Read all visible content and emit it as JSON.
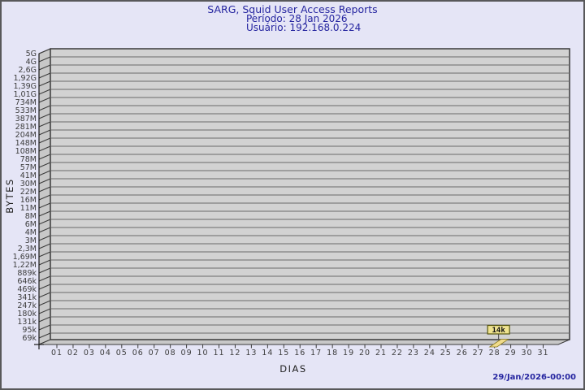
{
  "header": {
    "title": "SARG, Squid User Access Reports",
    "period_label": "Período: 28 Jan 2026",
    "user_label": "Usuário: 192.168.0.224"
  },
  "footer": {
    "timestamp": "29/Jan/2026-00:00"
  },
  "chart_data": {
    "type": "bar",
    "title": "SARG, Squid User Access Reports",
    "subtitle": "Período: 28 Jan 2026",
    "user": "Usuário: 192.168.0.224",
    "xlabel": "DIAS",
    "ylabel": "BYTES",
    "y_scale": "logarithmic",
    "y_tick_labels": [
      "5G",
      "4G",
      "2,6G",
      "1,92G",
      "1,39G",
      "1,01G",
      "734M",
      "533M",
      "387M",
      "281M",
      "204M",
      "148M",
      "108M",
      "78M",
      "57M",
      "41M",
      "30M",
      "22M",
      "16M",
      "11M",
      "8M",
      "6M",
      "4M",
      "3M",
      "2,3M",
      "1,69M",
      "1,22M",
      "889k",
      "646k",
      "469k",
      "341k",
      "247k",
      "180k",
      "131k",
      "95k",
      "69k"
    ],
    "categories": [
      "01",
      "02",
      "03",
      "04",
      "05",
      "06",
      "07",
      "08",
      "09",
      "10",
      "11",
      "12",
      "13",
      "14",
      "15",
      "16",
      "17",
      "18",
      "19",
      "20",
      "21",
      "22",
      "23",
      "24",
      "25",
      "26",
      "27",
      "28",
      "29",
      "30",
      "31"
    ],
    "series": [
      {
        "name": "bytes",
        "values": [
          0,
          0,
          0,
          0,
          0,
          0,
          0,
          0,
          0,
          0,
          0,
          0,
          0,
          0,
          0,
          0,
          0,
          0,
          0,
          0,
          0,
          0,
          0,
          0,
          0,
          0,
          0,
          14000,
          0,
          0,
          0
        ]
      }
    ],
    "data_labels": [
      {
        "category": "28",
        "text": "14k"
      }
    ],
    "grid": true,
    "legend": false,
    "colors": {
      "background": "#E5E5F6",
      "panel": "#D2D2D2",
      "wall": "#C8C8C8",
      "grid_line": "#6A6A6A",
      "frame": "#3A3A3A",
      "tick_text": "#3C3C3C",
      "bar": "#F1DC8C",
      "annotation_bg": "#EFE38F",
      "annotation_border": "#55550F",
      "title_text": "#2525A0"
    }
  }
}
